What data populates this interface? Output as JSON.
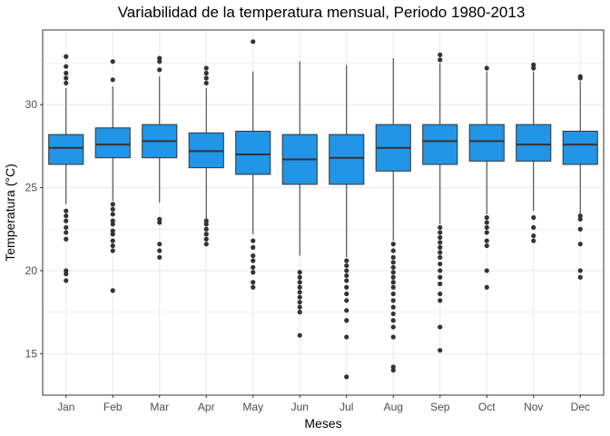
{
  "chart_data": {
    "type": "box",
    "title": "Variabilidad de la temperatura mensual, Periodo 1980-2013",
    "xlabel": "Meses",
    "ylabel": "Temperatura (°C)",
    "ylim": [
      12.5,
      34.5
    ],
    "yticks": [
      15,
      20,
      25,
      30
    ],
    "grid": true,
    "box_fill": "#2196E6",
    "categories": [
      "Jan",
      "Feb",
      "Mar",
      "Apr",
      "May",
      "Jun",
      "Jul",
      "Aug",
      "Sep",
      "Oct",
      "Nov",
      "Dec"
    ],
    "boxes": [
      {
        "q1": 26.4,
        "median": 27.4,
        "q3": 28.2,
        "whisker_low": 24.0,
        "whisker_high": 31.0,
        "outliers": [
          32.9,
          32.3,
          31.9,
          31.6,
          31.3,
          23.6,
          23.3,
          23.0,
          22.6,
          22.3,
          21.9,
          20.0,
          19.8,
          19.4
        ]
      },
      {
        "q1": 26.8,
        "median": 27.6,
        "q3": 28.6,
        "whisker_low": 24.2,
        "whisker_high": 31.1,
        "outliers": [
          32.6,
          31.5,
          24.0,
          23.7,
          23.4,
          23.0,
          22.8,
          22.4,
          22.2,
          21.8,
          21.5,
          21.2,
          18.8
        ]
      },
      {
        "q1": 26.8,
        "median": 27.8,
        "q3": 28.8,
        "whisker_low": 24.1,
        "whisker_high": 31.7,
        "outliers": [
          32.8,
          32.6,
          32.1,
          23.1,
          22.9,
          21.6,
          21.2,
          20.8
        ]
      },
      {
        "q1": 26.2,
        "median": 27.2,
        "q3": 28.3,
        "whisker_low": 23.1,
        "whisker_high": 31.0,
        "outliers": [
          32.2,
          31.9,
          31.6,
          31.3,
          23.0,
          22.8,
          22.5,
          22.2,
          21.9,
          21.6
        ]
      },
      {
        "q1": 25.8,
        "median": 27.0,
        "q3": 28.4,
        "whisker_low": 22.2,
        "whisker_high": 32.0,
        "outliers": [
          33.8,
          21.8,
          21.4,
          20.9,
          20.6,
          20.2,
          19.9,
          19.3,
          19.0
        ]
      },
      {
        "q1": 25.2,
        "median": 26.7,
        "q3": 28.2,
        "whisker_low": 20.9,
        "whisker_high": 32.6,
        "outliers": [
          19.9,
          19.6,
          19.3,
          19.0,
          18.7,
          18.4,
          18.1,
          17.8,
          17.5,
          16.1
        ]
      },
      {
        "q1": 25.2,
        "median": 26.8,
        "q3": 28.2,
        "whisker_low": 20.8,
        "whisker_high": 32.4,
        "outliers": [
          20.6,
          20.3,
          20.0,
          19.7,
          19.4,
          19.0,
          18.6,
          18.2,
          17.6,
          17.0,
          16.0,
          13.6
        ]
      },
      {
        "q1": 26.0,
        "median": 27.4,
        "q3": 28.8,
        "whisker_low": 21.8,
        "whisker_high": 32.8,
        "outliers": [
          21.6,
          21.2,
          20.8,
          20.5,
          20.2,
          19.9,
          19.6,
          19.3,
          19.0,
          18.6,
          18.2,
          17.8,
          17.4,
          17.0,
          16.6,
          16.0,
          14.2,
          14.0
        ]
      },
      {
        "q1": 26.4,
        "median": 27.8,
        "q3": 28.8,
        "whisker_low": 22.8,
        "whisker_high": 32.5,
        "outliers": [
          33.0,
          32.7,
          22.6,
          22.3,
          22.0,
          21.7,
          21.4,
          21.1,
          20.8,
          20.4,
          20.0,
          19.6,
          19.2,
          18.6,
          18.2,
          16.6,
          15.2
        ]
      },
      {
        "q1": 26.6,
        "median": 27.8,
        "q3": 28.8,
        "whisker_low": 23.4,
        "whisker_high": 32.0,
        "outliers": [
          32.2,
          23.2,
          22.9,
          22.6,
          22.3,
          21.8,
          21.5,
          20.0,
          19.0
        ]
      },
      {
        "q1": 26.6,
        "median": 27.6,
        "q3": 28.8,
        "whisker_low": 23.6,
        "whisker_high": 32.0,
        "outliers": [
          32.4,
          32.2,
          23.2,
          22.6,
          22.1,
          21.8
        ]
      },
      {
        "q1": 26.4,
        "median": 27.6,
        "q3": 28.4,
        "whisker_low": 23.4,
        "whisker_high": 31.4,
        "outliers": [
          31.7,
          31.6,
          23.3,
          23.1,
          22.5,
          21.6,
          20.0,
          19.6
        ]
      }
    ]
  }
}
